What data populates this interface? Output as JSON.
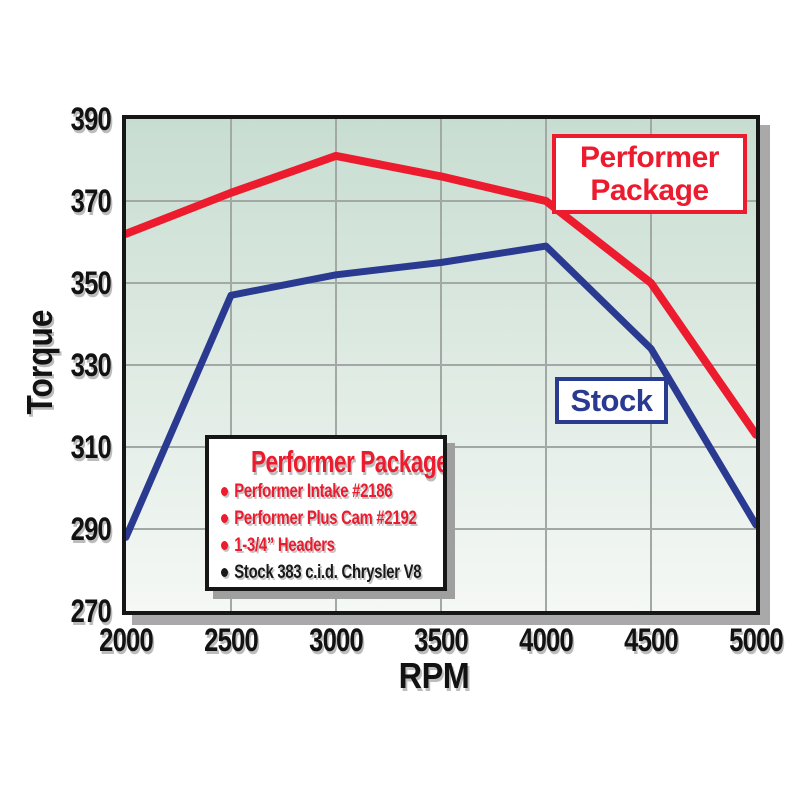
{
  "chart_data": {
    "type": "line",
    "title": "",
    "xlabel": "RPM",
    "ylabel": "Torque",
    "x": [
      2000,
      2500,
      3000,
      3500,
      4000,
      4500,
      5000
    ],
    "x_tick_labels": [
      "2000",
      "2500",
      "3000",
      "3500",
      "4000",
      "4500",
      "5000"
    ],
    "y_tick_labels": [
      "390",
      "370",
      "350",
      "330",
      "310",
      "290",
      "270"
    ],
    "xlim": [
      2000,
      5000
    ],
    "ylim": [
      270,
      390
    ],
    "grid": true,
    "legend_position": "on-chart callout boxes",
    "series": [
      {
        "name": "Performer Package",
        "color": "#ec1b2d",
        "stroke_width": 8,
        "values": [
          362,
          372,
          381,
          376,
          370,
          350,
          313
        ]
      },
      {
        "name": "Stock",
        "color": "#2b3a91",
        "stroke_width": 7,
        "values": [
          288,
          347,
          352,
          355,
          359,
          334,
          291
        ]
      }
    ],
    "plot_bg_gradient": [
      "#c8ddd1",
      "#f5f8f5"
    ],
    "gridline_color": "#a2a8a4"
  },
  "labels": {
    "y_axis_title": "Torque",
    "x_axis_title": "RPM",
    "performer_box": {
      "line1": "Performer",
      "line2": "Package"
    },
    "stock_box": "Stock"
  },
  "legend": {
    "title": "Performer Package",
    "items": [
      {
        "text": "Performer Intake #2186",
        "color": "#ec1b2d"
      },
      {
        "text": "Performer Plus Cam #2192",
        "color": "#ec1b2d"
      },
      {
        "text": "1-3/4” Headers",
        "color": "#ec1b2d"
      },
      {
        "text": "Stock 383 c.i.d. Chrysler V8",
        "color": "#1a1a1a"
      }
    ]
  },
  "colors": {
    "performer_red": "#ec1b2d",
    "stock_blue": "#2b3a91",
    "plot_border": "#161616",
    "drop_shadow": "#a9a9a9",
    "axis_text": "#121212"
  }
}
